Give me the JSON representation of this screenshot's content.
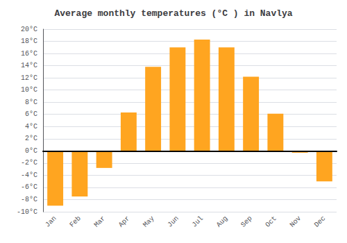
{
  "chart_data": {
    "type": "bar",
    "title": "Average monthly temperatures (°C ) in Navlya",
    "categories": [
      "Jan",
      "Feb",
      "Mar",
      "Apr",
      "May",
      "Jun",
      "Jul",
      "Aug",
      "Sep",
      "Oct",
      "Nov",
      "Dec"
    ],
    "values": [
      -9,
      -7.5,
      -2.8,
      6.3,
      13.8,
      17,
      18.3,
      17,
      12.2,
      6.1,
      -0.3,
      -5
    ],
    "color": "#FFA520",
    "ylim": [
      -10,
      20
    ],
    "yticks": [
      {
        "value": -10,
        "label": "-10°C"
      },
      {
        "value": -8,
        "label": "-8°C"
      },
      {
        "value": -6,
        "label": "-6°C"
      },
      {
        "value": -4,
        "label": "-4°C"
      },
      {
        "value": -2,
        "label": "-2°C"
      },
      {
        "value": 0,
        "label": "0°C"
      },
      {
        "value": 2,
        "label": "2°C"
      },
      {
        "value": 4,
        "label": "4°C"
      },
      {
        "value": 6,
        "label": "6°C"
      },
      {
        "value": 8,
        "label": "8°C"
      },
      {
        "value": 10,
        "label": "10°C"
      },
      {
        "value": 12,
        "label": "12°C"
      },
      {
        "value": 14,
        "label": "14°C"
      },
      {
        "value": 16,
        "label": "16°C"
      },
      {
        "value": 18,
        "label": "18°C"
      },
      {
        "value": 20,
        "label": "20°C"
      }
    ],
    "grid": true
  }
}
